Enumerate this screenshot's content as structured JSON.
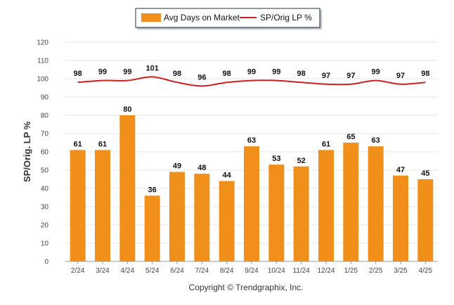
{
  "chart_data": {
    "type": "bar",
    "categories": [
      "2/24",
      "3/24",
      "4/24",
      "5/24",
      "6/24",
      "7/24",
      "8/24",
      "9/24",
      "10/24",
      "11/24",
      "12/24",
      "1/25",
      "2/25",
      "3/25",
      "4/25"
    ],
    "series": [
      {
        "name": "Avg Days on Market",
        "type": "bar",
        "color": "#f0901a",
        "values": [
          61,
          61,
          80,
          36,
          49,
          48,
          44,
          63,
          53,
          52,
          61,
          65,
          63,
          47,
          45
        ]
      },
      {
        "name": "SP/Orig LP %",
        "type": "line",
        "color": "#cc1f1f",
        "values": [
          98,
          99,
          99,
          101,
          98,
          96,
          98,
          99,
          99,
          98,
          97,
          97,
          99,
          97,
          98
        ]
      }
    ],
    "ylabel": "SP/Orig. LP %",
    "ylim": [
      0,
      120
    ],
    "yticks": [
      0,
      10,
      20,
      30,
      40,
      50,
      60,
      70,
      80,
      90,
      100,
      110,
      120
    ],
    "grid": true,
    "legend_position": "top-center"
  },
  "footer": "Copyright © Trendgraphix, Inc."
}
